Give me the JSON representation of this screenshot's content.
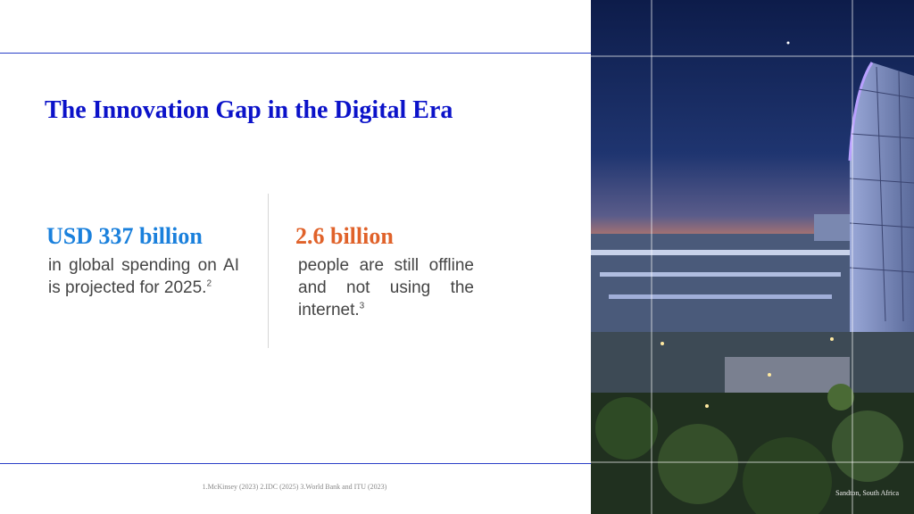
{
  "title": "The Innovation Gap in the Digital Era",
  "stats": [
    {
      "value": "USD 337 billion",
      "text": "in global spending on AI is projected for 2025.",
      "note": "2"
    },
    {
      "value": "2.6 billion",
      "text": "people are still offline and not using the internet.",
      "note": "3"
    }
  ],
  "footer": "1.McKinsey (2023) 2.IDC (2025) 3.World Bank and ITU (2023)",
  "caption": "Sandton, South Africa"
}
